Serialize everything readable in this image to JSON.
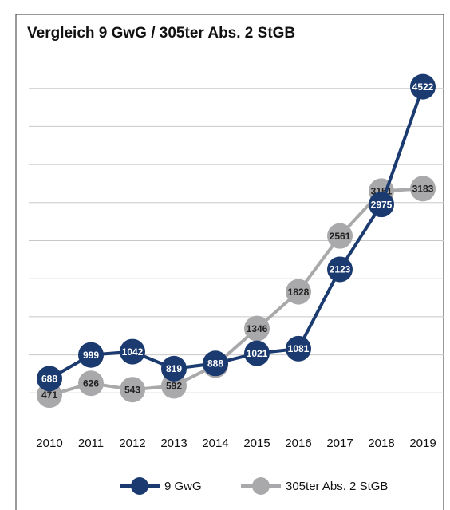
{
  "chart_data": {
    "type": "line",
    "title": "Vergleich 9 GwG / 305ter Abs. 2 StGB",
    "categories": [
      "2010",
      "2011",
      "2012",
      "2013",
      "2014",
      "2015",
      "2016",
      "2017",
      "2018",
      "2019"
    ],
    "series": [
      {
        "name": "9 GwG",
        "color": "#1b3a6f",
        "values": [
          688,
          999,
          1042,
          819,
          888,
          1021,
          1081,
          2123,
          2975,
          4522
        ]
      },
      {
        "name": "305ter Abs. 2 StGB",
        "color": "#a9a9ab",
        "values": [
          471,
          626,
          543,
          592,
          865,
          1346,
          1828,
          2561,
          3151,
          3183
        ]
      }
    ],
    "ylim": [
      0,
      5000
    ],
    "yticks": [
      500,
      1000,
      1500,
      2000,
      2500,
      3000,
      3500,
      4000,
      4500
    ],
    "grid": true
  }
}
